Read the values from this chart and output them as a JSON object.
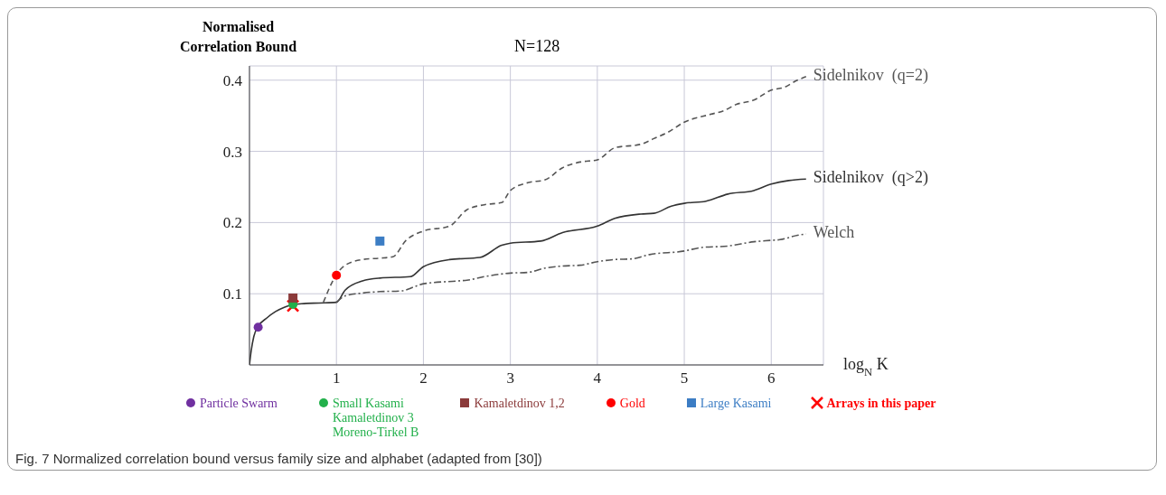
{
  "chart_data": {
    "type": "line",
    "title": "N=128",
    "xlabel": "log$_{N}$ K",
    "ylabel": "Normalised Correlation Bound",
    "xlim": [
      0,
      6.6
    ],
    "ylim": [
      0,
      0.42
    ],
    "xticks": [
      1,
      2,
      3,
      4,
      5,
      6
    ],
    "yticks": [
      0.1,
      0.2,
      0.3,
      0.4
    ],
    "grid": true,
    "legend": "bottom",
    "series": [
      {
        "name": "Sidelnikov  (q=2)",
        "color": "#555555",
        "line_style": "dashed",
        "marker": "none",
        "x": [
          0.85,
          1.0,
          1.1,
          1.3,
          1.5,
          1.65,
          1.8,
          2.0,
          2.3,
          2.5,
          2.7,
          2.9,
          3.0,
          3.2,
          3.4,
          3.6,
          3.8,
          4.0,
          4.2,
          4.5,
          4.65,
          4.8,
          5.0,
          5.3,
          5.45,
          5.6,
          5.8,
          6.0,
          6.15,
          6.3,
          6.4
        ],
        "values": [
          0.088,
          0.127,
          0.14,
          0.148,
          0.15,
          0.152,
          0.175,
          0.188,
          0.195,
          0.218,
          0.225,
          0.228,
          0.245,
          0.256,
          0.26,
          0.277,
          0.285,
          0.288,
          0.305,
          0.31,
          0.318,
          0.326,
          0.341,
          0.352,
          0.357,
          0.366,
          0.372,
          0.386,
          0.39,
          0.4,
          0.405
        ]
      },
      {
        "name": "Sidelnikov  (q>2)",
        "color": "#333333",
        "line_style": "solid",
        "marker": "none",
        "x": [
          0,
          0.02,
          0.05,
          0.1,
          0.2,
          0.3,
          0.4,
          0.6,
          0.8,
          1.0,
          1.1,
          1.3,
          1.5,
          1.85,
          2.0,
          2.3,
          2.65,
          2.9,
          3.0,
          3.35,
          3.6,
          4.0,
          4.2,
          4.5,
          4.65,
          4.85,
          5.0,
          5.25,
          5.5,
          5.8,
          6.0,
          6.2,
          6.4
        ],
        "values": [
          0,
          0.02,
          0.04,
          0.054,
          0.066,
          0.075,
          0.081,
          0.086,
          0.087,
          0.088,
          0.105,
          0.118,
          0.122,
          0.124,
          0.138,
          0.148,
          0.151,
          0.168,
          0.171,
          0.174,
          0.186,
          0.195,
          0.206,
          0.212,
          0.213,
          0.223,
          0.227,
          0.23,
          0.24,
          0.245,
          0.254,
          0.259,
          0.261
        ]
      },
      {
        "name": "Welch",
        "color": "#555555",
        "line_style": "dashdot",
        "marker": "none",
        "x": [
          1.0,
          1.1,
          1.3,
          1.5,
          1.75,
          1.9,
          2.0,
          2.4,
          2.5,
          2.7,
          3.0,
          3.2,
          3.4,
          3.6,
          3.8,
          4.0,
          4.2,
          4.4,
          4.6,
          5.0,
          5.2,
          5.5,
          5.8,
          6.0,
          6.1,
          6.3,
          6.4
        ],
        "values": [
          0.088,
          0.097,
          0.101,
          0.103,
          0.104,
          0.11,
          0.114,
          0.118,
          0.119,
          0.124,
          0.129,
          0.13,
          0.136,
          0.139,
          0.14,
          0.145,
          0.148,
          0.149,
          0.155,
          0.16,
          0.165,
          0.167,
          0.173,
          0.175,
          0.176,
          0.182,
          0.184
        ]
      },
      {
        "name": "Particle Swarm",
        "type": "scatter",
        "marker": "circle",
        "color": "#7030a0",
        "x": [
          0.1
        ],
        "values": [
          0.053
        ]
      },
      {
        "name": "Small Kasami\nKamaletdinov 3\nMoreno-Tirkel B",
        "type": "scatter",
        "marker": "circle",
        "color": "#22b04b",
        "x": [
          0.5
        ],
        "values": [
          0.085
        ]
      },
      {
        "name": "Kamaletdinov 1,2",
        "type": "scatter",
        "marker": "square",
        "color": "#8b3a3a",
        "x": [
          0.5
        ],
        "values": [
          0.094
        ]
      },
      {
        "name": "Gold",
        "type": "scatter",
        "marker": "circle",
        "color": "#ff0000",
        "x": [
          1.0
        ],
        "values": [
          0.126
        ]
      },
      {
        "name": "Large Kasami",
        "type": "scatter",
        "marker": "square",
        "color": "#3c7dc4",
        "x": [
          1.5
        ],
        "values": [
          0.174
        ]
      },
      {
        "name": "Arrays in this paper",
        "type": "scatter",
        "marker": "cross",
        "color": "#ff0000",
        "x": [
          0.5
        ],
        "values": [
          0.083
        ]
      }
    ],
    "annotations": [
      "Fig. 7 Normalized correlation bound versus family size and alphabet (adapted from [30])"
    ]
  }
}
